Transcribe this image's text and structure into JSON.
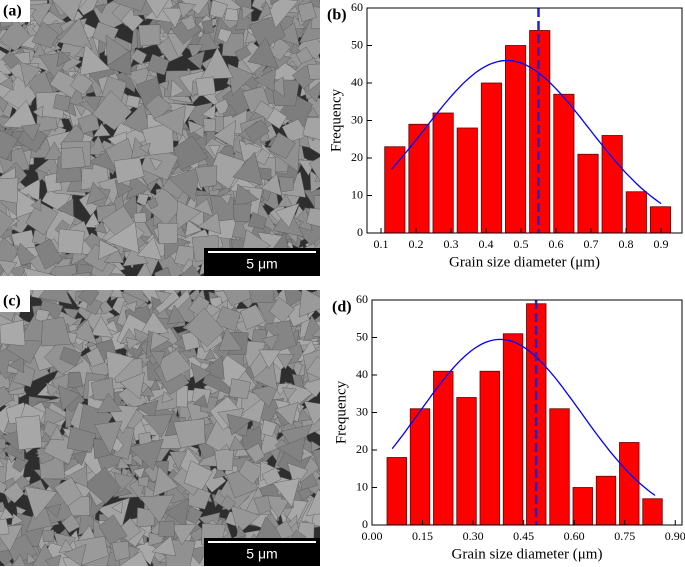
{
  "images": [
    {
      "label": "(a)",
      "scale_bar": "5 μm"
    },
    {
      "label": "(c)",
      "scale_bar": "5 μm"
    }
  ],
  "chart_data": [
    {
      "type": "histogram",
      "label": "(b)",
      "x_label": "Grain size diameter (μm)",
      "y_label": "Frequency",
      "bins": [
        0.105,
        0.174,
        0.243,
        0.312,
        0.381,
        0.45,
        0.519,
        0.588,
        0.657,
        0.726,
        0.795,
        0.864,
        0.933
      ],
      "values": [
        23,
        29,
        32,
        28,
        40,
        50,
        54,
        37,
        21,
        26,
        11,
        7
      ],
      "color": "#ff0000",
      "xlim": [
        0.06,
        0.96
      ],
      "xticks": [
        0.1,
        0.2,
        0.3,
        0.4,
        0.5,
        0.6,
        0.7,
        0.8,
        0.9
      ],
      "ylim": [
        0,
        60
      ],
      "yticks": [
        0,
        10,
        20,
        30,
        40,
        50,
        60
      ],
      "mean_line": 0.55,
      "mean_line_color": "#2222cc",
      "fit": {
        "mean": 0.46,
        "sd": 0.234,
        "peak": 46,
        "from": 0.13,
        "to": 0.9,
        "color": "#0000ff"
      }
    },
    {
      "type": "histogram",
      "label": "(d)",
      "x_label": "Grain size diameter (μm)",
      "y_label": "Frequency",
      "bins": [
        0.039,
        0.108,
        0.177,
        0.246,
        0.315,
        0.384,
        0.453,
        0.522,
        0.591,
        0.66,
        0.729,
        0.798,
        0.867
      ],
      "values": [
        18,
        31,
        41,
        34,
        41,
        51,
        59,
        31,
        10,
        13,
        22,
        7
      ],
      "color": "#ff0000",
      "xlim": [
        0,
        0.92
      ],
      "xticks": [
        {
          "value": 0,
          "label": "0.00"
        },
        {
          "value": 0.15,
          "label": "0.15"
        },
        {
          "value": 0.3,
          "label": "0.30"
        },
        {
          "value": 0.45,
          "label": "0.45"
        },
        {
          "value": 0.6,
          "label": "0.60"
        },
        {
          "value": 0.75,
          "label": "0.75"
        },
        {
          "value": 0.9,
          "label": "0.90"
        }
      ],
      "ylim": [
        0,
        60
      ],
      "yticks": [
        0,
        10,
        20,
        30,
        40,
        50,
        60
      ],
      "mean_line": 0.487,
      "mean_line_color": "#2222cc",
      "fit": {
        "mean": 0.38,
        "sd": 0.24,
        "peak": 49.5,
        "from": 0.06,
        "to": 0.84,
        "color": "#0000ff"
      }
    }
  ]
}
